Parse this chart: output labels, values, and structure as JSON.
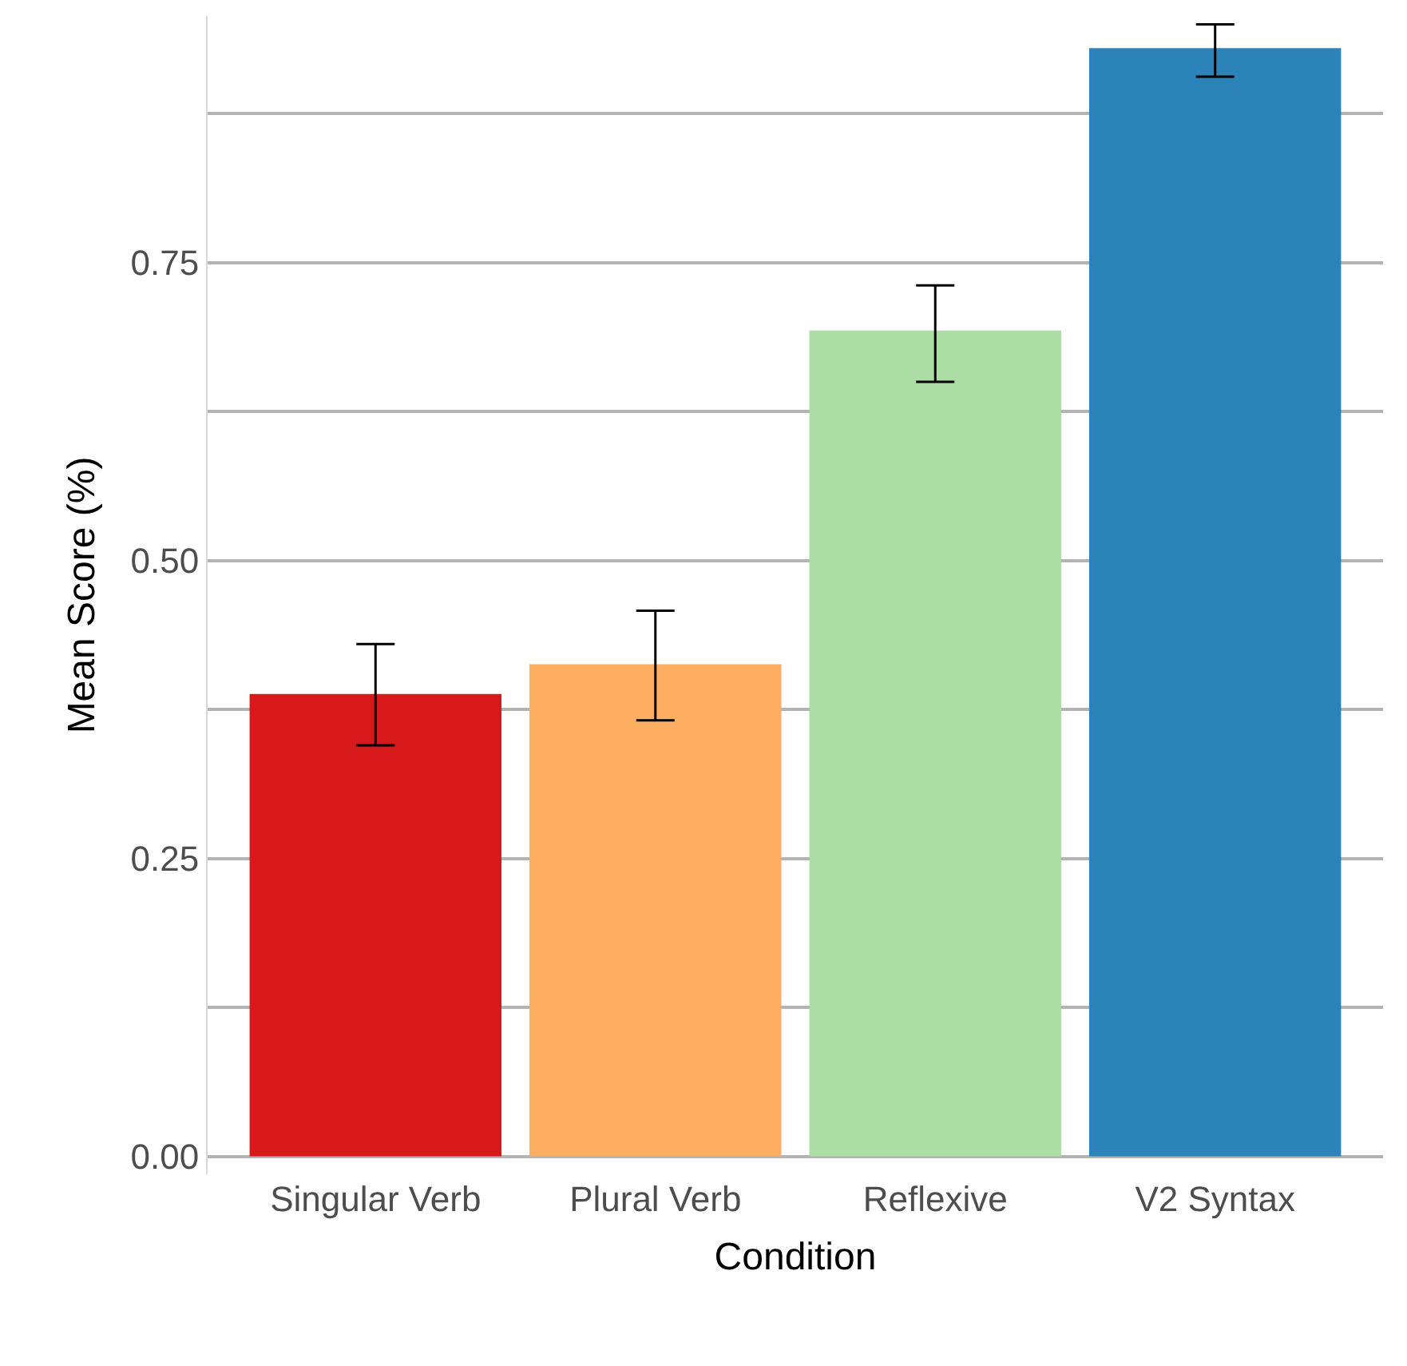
{
  "chart_data": {
    "type": "bar",
    "xlabel": "Condition",
    "ylabel": "Mean Score (%)",
    "categories": [
      "Singular Verb",
      "Plural Verb",
      "Reflexive",
      "V2 Syntax"
    ],
    "values": [
      0.388,
      0.413,
      0.693,
      0.93
    ],
    "colors": [
      "#d7191c",
      "#fdae61",
      "#abdda4",
      "#2b83ba"
    ],
    "errors": [
      [
        0.345,
        0.43
      ],
      [
        0.366,
        0.458
      ],
      [
        0.65,
        0.731
      ],
      [
        0.906,
        0.95
      ]
    ],
    "ylim": [
      -0.015,
      0.957
    ],
    "yticks": [
      {
        "value": 0,
        "label": "0.00"
      },
      {
        "value": 0.125,
        "label": null
      },
      0.25,
      {
        "value": 0.375,
        "label": null
      },
      {
        "value": 0.5,
        "label": "0.50"
      },
      {
        "value": 0.625,
        "label": null
      },
      0.75,
      {
        "value": 0.875,
        "label": null
      }
    ],
    "grid": "y"
  }
}
